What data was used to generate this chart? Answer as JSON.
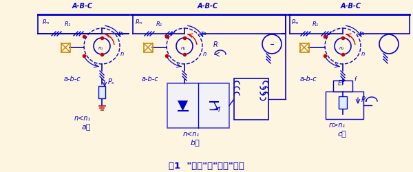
{
  "bg_color": "#FEF5E0",
  "line_color": "#0000CC",
  "red_color": "#CC0000",
  "orange_color": "#CC8800",
  "title": "图1  \"单馈\"与\"双馈\"电机",
  "sec_a_label": "a）",
  "sec_b_label": "b）",
  "sec_c_label": "c）",
  "abc_upper": "A-B-C",
  "abc_lower_a": "a-b-c",
  "abc_lower_b": "a-b-c",
  "abc_lower_c": "a-b-c",
  "speed_a": "n<n₁",
  "speed_b": "n<n₁",
  "speed_c": "n>n₁",
  "label_PM_a": "Pₘ",
  "label_R1": "R₁",
  "label_Ps": "Pₛ",
  "label_R": "R",
  "label_n1": "n₁",
  "label_n": "n",
  "label_n2": "n₂",
  "label_Ef": "Ef",
  "label_f": "f"
}
